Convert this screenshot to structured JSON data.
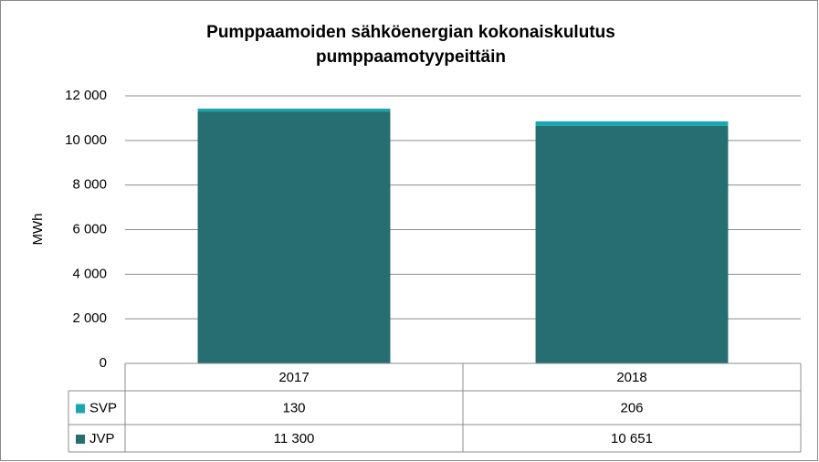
{
  "chart_data": {
    "type": "stacked-bar",
    "title": [
      "Pumppaamoiden  sähköenergian kokonaiskulutus",
      "pumppaamotyypeittäin"
    ],
    "y_label": "MWh",
    "categories": [
      "2017",
      "2018"
    ],
    "series": [
      {
        "name": "SVP",
        "color": "#1aa6b0",
        "values": [
          130,
          206
        ]
      },
      {
        "name": "JVP",
        "color": "#276e72",
        "values": [
          11300,
          10651
        ],
        "value_labels": [
          "11 300",
          "10 651"
        ]
      }
    ],
    "ylim": [
      0,
      12000
    ],
    "yticks": [
      {
        "value": 0,
        "label": "0"
      },
      {
        "value": 2000,
        "label": "2 000"
      },
      {
        "value": 4000,
        "label": "4 000"
      },
      {
        "value": 6000,
        "label": "6 000"
      },
      {
        "value": 8000,
        "label": "8 000"
      },
      {
        "value": 10000,
        "label": "10 000"
      },
      {
        "value": 12000,
        "label": "12 000"
      }
    ],
    "grid": true
  }
}
